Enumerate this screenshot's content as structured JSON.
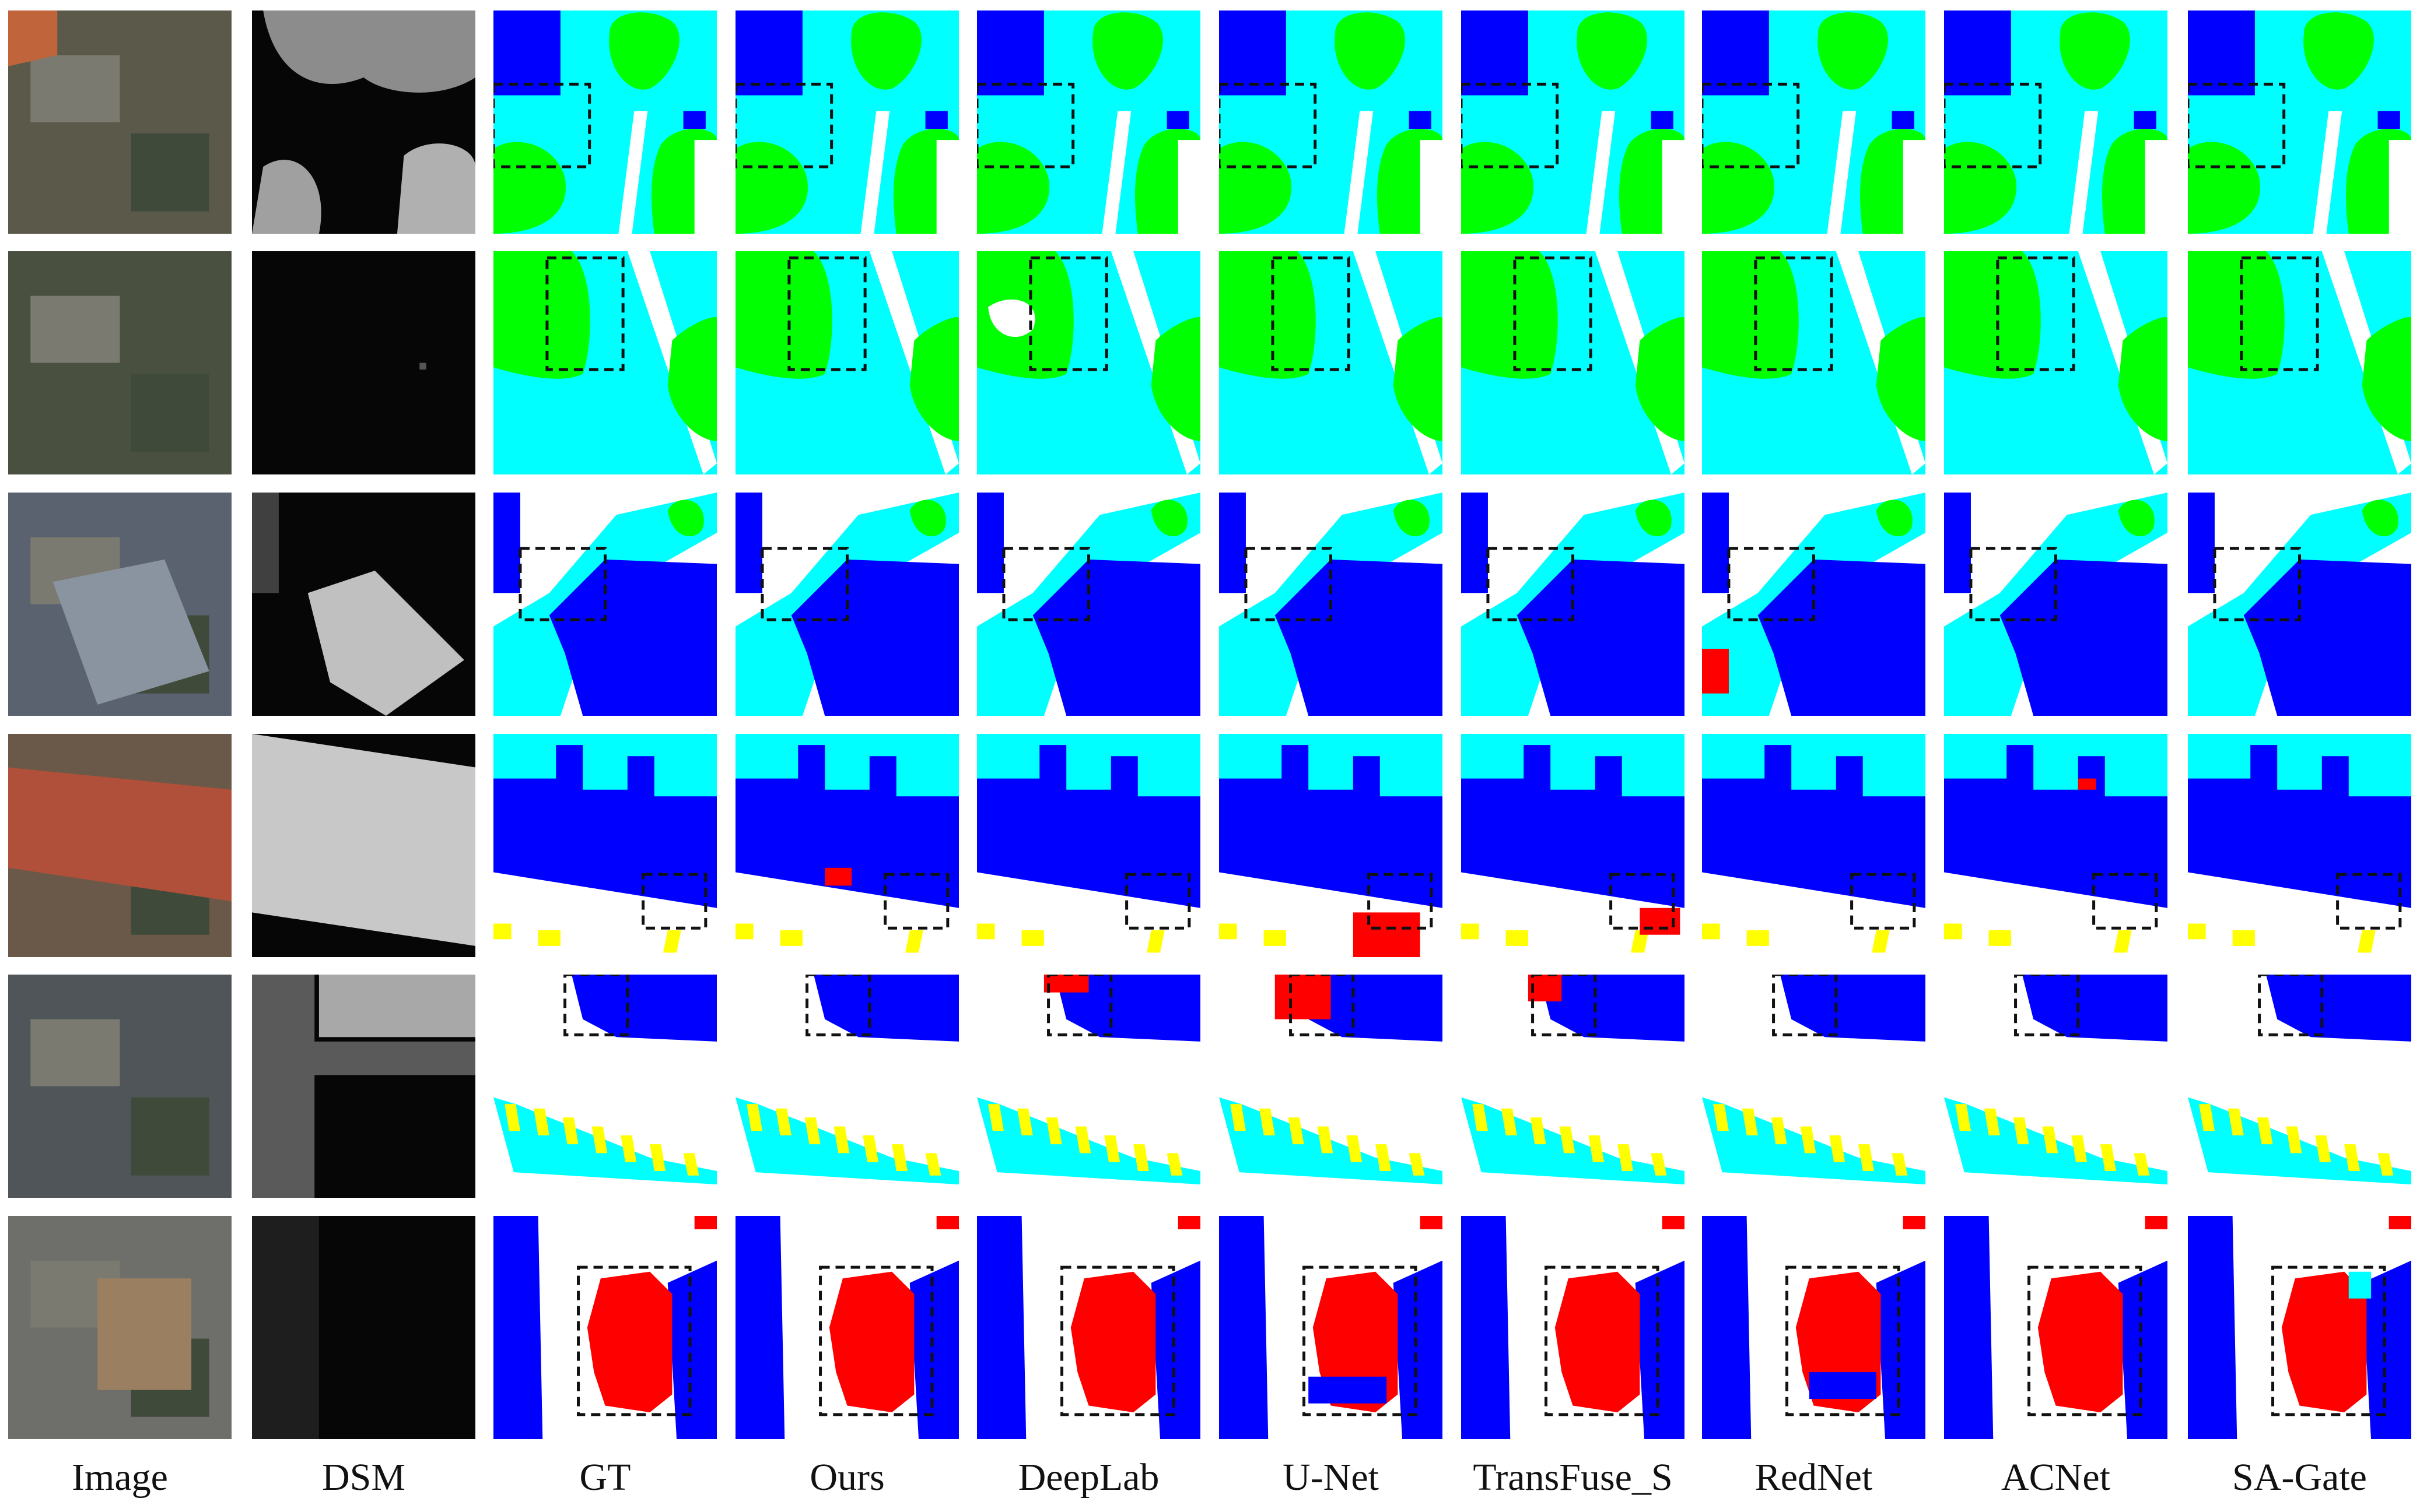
{
  "figure": {
    "columns": [
      "Image",
      "DSM",
      "GT",
      "Ours",
      "DeepLab",
      "U-Net",
      "TransFuse_S",
      "RedNet",
      "ACNet",
      "SA-Gate"
    ],
    "rows": 6
  },
  "palette": {
    "impervious_surfaces": "#ffffff",
    "building": "#0000ff",
    "low_vegetation": "#00ffff",
    "tree": "#00ff00",
    "car": "#ffff00",
    "clutter": "#ff0000"
  }
}
